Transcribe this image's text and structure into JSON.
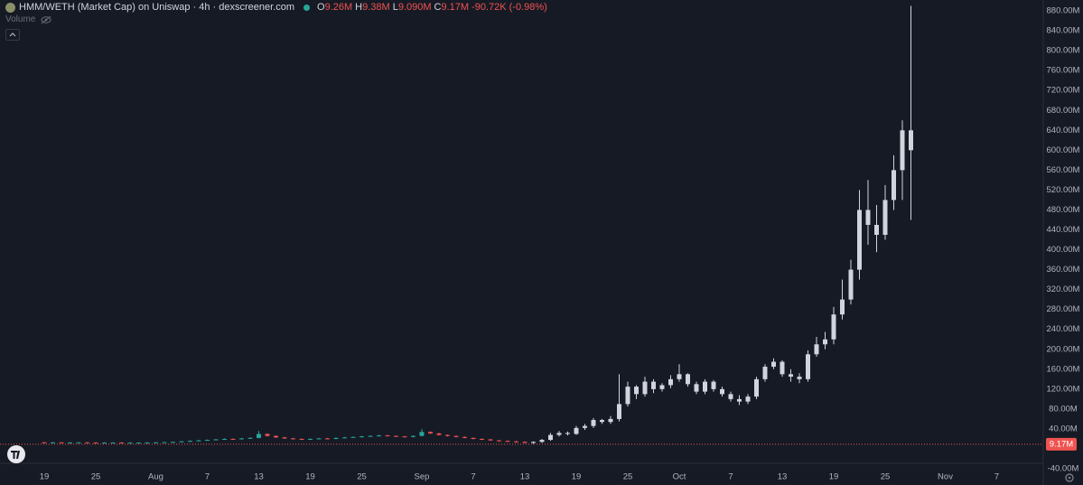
{
  "chart_data": {
    "type": "candlestick",
    "title": "HMM/WETH (Market Cap) on Uniswap · 4h · dexscreener.com",
    "ohlc_legend": [
      {
        "key": "O",
        "value": "9.26M"
      },
      {
        "key": "H",
        "value": "9.38M"
      },
      {
        "key": "L",
        "value": "9.090M"
      },
      {
        "key": "C",
        "value": "9.17M"
      }
    ],
    "change": "-90.72K (-0.98%)",
    "volume_label": "Volume",
    "last_price": {
      "value": 9.17,
      "label": "9.17M",
      "color": "#ef5350"
    },
    "categories": [
      "19",
      null,
      null,
      null,
      null,
      null,
      "25",
      null,
      null,
      null,
      null,
      null,
      null,
      "Aug",
      null,
      null,
      null,
      null,
      null,
      "7",
      null,
      null,
      null,
      null,
      null,
      "13",
      null,
      null,
      null,
      null,
      null,
      "19",
      null,
      null,
      null,
      null,
      null,
      "25",
      null,
      null,
      null,
      null,
      null,
      null,
      "Sep",
      null,
      null,
      null,
      null,
      null,
      "7",
      null,
      null,
      null,
      null,
      null,
      "13",
      null,
      null,
      null,
      null,
      null,
      "19",
      null,
      null,
      null,
      null,
      null,
      "25",
      null,
      null,
      null,
      null,
      null,
      "Oct",
      null,
      null,
      null,
      null,
      null,
      "7",
      null,
      null,
      null,
      null,
      null,
      "13",
      null,
      null,
      null,
      null,
      null,
      "19",
      null,
      null,
      null,
      null,
      null,
      "25",
      null,
      null,
      null,
      null,
      null,
      null,
      "Nov",
      null,
      null,
      null,
      null,
      null,
      "7",
      null,
      null,
      null
    ],
    "series": [
      {
        "color_up": "#26a69a",
        "color_down": "#ef5350",
        "open": [
          13.2,
          13,
          13,
          12.5,
          12.8,
          13,
          12.6,
          12.4,
          12.5,
          12.7,
          12.3,
          12.5,
          12.6,
          12.8,
          13.2,
          13.5,
          14,
          15,
          16,
          17,
          18,
          19,
          20,
          19.5,
          21,
          22,
          30,
          26,
          23,
          21,
          20,
          19,
          20,
          21,
          20,
          22,
          23,
          24,
          25,
          26,
          27,
          26,
          25,
          24,
          26,
          34,
          31,
          28,
          26,
          24,
          22,
          20,
          19,
          17,
          16,
          15,
          14,
          null,
          null,
          null,
          null,
          null,
          null,
          null,
          null,
          null,
          null,
          null,
          null,
          null,
          null,
          null,
          null,
          null,
          null,
          null,
          null,
          null,
          null,
          null,
          null,
          null,
          null,
          null,
          null,
          null,
          null,
          null,
          null,
          null,
          null,
          null,
          null,
          null,
          null,
          null,
          null,
          null,
          null,
          null,
          null,
          null,
          null,
          null,
          null,
          null,
          null,
          null,
          null,
          null,
          null,
          null,
          null,
          null,
          null
        ],
        "high": [
          14,
          13.8,
          13.6,
          13.4,
          13.7,
          13.6,
          13.3,
          13.1,
          13.3,
          13.4,
          13.2,
          13.2,
          13.4,
          13.9,
          14.1,
          14.6,
          15.8,
          16.9,
          17.9,
          18.9,
          20,
          21,
          21,
          22,
          23.5,
          36,
          31,
          27,
          24,
          22,
          21,
          21,
          22,
          22,
          23,
          24,
          25,
          26,
          27,
          28,
          28,
          27,
          26,
          27,
          40,
          35,
          32,
          29,
          27,
          25,
          23,
          21,
          20,
          18,
          17,
          16,
          15,
          null,
          null,
          null,
          null,
          null,
          null,
          null,
          null,
          null,
          null,
          null,
          null,
          null,
          null,
          null,
          null,
          null,
          null,
          null,
          null,
          null,
          null,
          null,
          null,
          null,
          null,
          null,
          null,
          null,
          null,
          null,
          null,
          null,
          null,
          null,
          null,
          null,
          null,
          null,
          null,
          null,
          null,
          null,
          null,
          null,
          null,
          null,
          null,
          null,
          null,
          null,
          null,
          null,
          null,
          null,
          null,
          null,
          null
        ],
        "low": [
          12.4,
          12.3,
          12,
          11.8,
          12.1,
          12,
          11.8,
          11.7,
          11.9,
          11.6,
          11.6,
          11.8,
          11.9,
          12.1,
          12.5,
          12.8,
          13.3,
          14.3,
          15.3,
          16.3,
          17.2,
          18.2,
          18.8,
          18.8,
          20.3,
          21,
          25,
          22,
          20,
          19.2,
          18,
          18.2,
          19.2,
          19.6,
          19.2,
          21.2,
          22.2,
          23.2,
          24.2,
          25.2,
          25.2,
          24.2,
          23.2,
          23.2,
          25,
          30,
          27,
          25,
          23,
          21,
          19,
          18,
          16,
          15,
          14,
          13,
          11,
          null,
          null,
          null,
          null,
          null,
          null,
          null,
          null,
          null,
          null,
          null,
          null,
          null,
          null,
          null,
          null,
          null,
          null,
          null,
          null,
          null,
          null,
          null,
          null,
          null,
          null,
          null,
          null,
          null,
          null,
          null,
          null,
          null,
          null,
          null,
          null,
          null,
          null,
          null,
          null,
          null,
          null,
          null,
          null,
          null,
          null,
          null,
          null,
          null,
          null,
          null,
          null,
          null,
          null,
          null,
          null,
          null,
          null
        ],
        "close": [
          13,
          13,
          12.5,
          12.8,
          13,
          12.6,
          12.4,
          12.5,
          12.7,
          12.3,
          12.5,
          12.6,
          12.8,
          13.2,
          13.5,
          14,
          15,
          16,
          17,
          18,
          19,
          20,
          19.5,
          21,
          22,
          30,
          26,
          23,
          21,
          20,
          19,
          20,
          21,
          20,
          22,
          23,
          24,
          25,
          26,
          27,
          26,
          25,
          24,
          26,
          34,
          31,
          28,
          26,
          24,
          22,
          20,
          19,
          17,
          16,
          15,
          14,
          12,
          null,
          null,
          null,
          null,
          null,
          null,
          null,
          null,
          null,
          null,
          null,
          null,
          null,
          null,
          null,
          null,
          null,
          null,
          null,
          null,
          null,
          null,
          null,
          null,
          null,
          null,
          null,
          null,
          null,
          null,
          null,
          null,
          null,
          null,
          null,
          null,
          null,
          null,
          null,
          null,
          null,
          null,
          null,
          null,
          null,
          null,
          null,
          null,
          null,
          null,
          null,
          null,
          null,
          null,
          null,
          null,
          null,
          null
        ]
      },
      {
        "color_up": "#d1d4dc",
        "color_down": "#d1d4dc",
        "open": [
          null,
          null,
          null,
          null,
          null,
          null,
          null,
          null,
          null,
          null,
          null,
          null,
          null,
          null,
          null,
          null,
          null,
          null,
          null,
          null,
          null,
          null,
          null,
          null,
          null,
          null,
          null,
          null,
          null,
          null,
          null,
          null,
          null,
          null,
          null,
          null,
          null,
          null,
          null,
          null,
          null,
          null,
          null,
          null,
          null,
          null,
          null,
          null,
          null,
          null,
          null,
          null,
          null,
          null,
          null,
          null,
          null,
          12,
          14,
          18,
          28,
          32,
          30,
          42,
          46,
          58,
          54,
          60,
          90,
          125,
          110,
          135,
          120,
          128,
          140,
          150,
          130,
          115,
          135,
          120,
          110,
          100,
          95,
          105,
          140,
          165,
          175,
          150,
          145,
          140,
          190,
          210,
          220,
          270,
          300,
          360,
          480,
          450,
          430,
          500,
          560,
          640,
          null,
          null,
          null,
          null,
          null,
          null,
          null,
          null,
          null,
          null,
          null,
          null,
          null
        ],
        "high": [
          null,
          null,
          null,
          null,
          null,
          null,
          null,
          null,
          null,
          null,
          null,
          null,
          null,
          null,
          null,
          null,
          null,
          null,
          null,
          null,
          null,
          null,
          null,
          null,
          null,
          null,
          null,
          null,
          null,
          null,
          null,
          null,
          null,
          null,
          null,
          null,
          null,
          null,
          null,
          null,
          null,
          null,
          null,
          null,
          null,
          null,
          null,
          null,
          null,
          null,
          null,
          null,
          null,
          null,
          null,
          null,
          null,
          15,
          20,
          32,
          36,
          35,
          46,
          50,
          62,
          60,
          66,
          150,
          135,
          128,
          145,
          140,
          132,
          148,
          170,
          152,
          135,
          140,
          138,
          125,
          115,
          108,
          110,
          145,
          170,
          182,
          178,
          160,
          152,
          198,
          225,
          235,
          285,
          340,
          380,
          520,
          540,
          490,
          530,
          590,
          660,
          890,
          null,
          null,
          null,
          null,
          null,
          null,
          null,
          null,
          null,
          null,
          null,
          null,
          null
        ],
        "low": [
          null,
          null,
          null,
          null,
          null,
          null,
          null,
          null,
          null,
          null,
          null,
          null,
          null,
          null,
          null,
          null,
          null,
          null,
          null,
          null,
          null,
          null,
          null,
          null,
          null,
          null,
          null,
          null,
          null,
          null,
          null,
          null,
          null,
          null,
          null,
          null,
          null,
          null,
          null,
          null,
          null,
          null,
          null,
          null,
          null,
          null,
          null,
          null,
          null,
          null,
          null,
          null,
          null,
          null,
          null,
          null,
          null,
          10,
          12,
          16,
          25,
          27,
          28,
          38,
          42,
          50,
          50,
          55,
          85,
          100,
          105,
          112,
          115,
          122,
          135,
          125,
          110,
          110,
          115,
          105,
          95,
          88,
          90,
          100,
          135,
          160,
          145,
          135,
          132,
          135,
          185,
          200,
          210,
          260,
          290,
          340,
          410,
          395,
          420,
          480,
          500,
          460,
          null,
          null,
          null,
          null,
          null,
          null,
          null,
          null,
          null,
          null,
          null,
          null,
          null
        ],
        "close": [
          null,
          null,
          null,
          null,
          null,
          null,
          null,
          null,
          null,
          null,
          null,
          null,
          null,
          null,
          null,
          null,
          null,
          null,
          null,
          null,
          null,
          null,
          null,
          null,
          null,
          null,
          null,
          null,
          null,
          null,
          null,
          null,
          null,
          null,
          null,
          null,
          null,
          null,
          null,
          null,
          null,
          null,
          null,
          null,
          null,
          null,
          null,
          null,
          null,
          null,
          null,
          null,
          null,
          null,
          null,
          null,
          null,
          14,
          18,
          28,
          32,
          30,
          42,
          46,
          58,
          54,
          60,
          90,
          125,
          110,
          135,
          120,
          128,
          140,
          150,
          130,
          115,
          135,
          120,
          110,
          100,
          95,
          105,
          140,
          165,
          175,
          150,
          145,
          140,
          190,
          210,
          220,
          270,
          300,
          360,
          480,
          450,
          430,
          500,
          560,
          640,
          600,
          null,
          null,
          null,
          null,
          null,
          null,
          null,
          null,
          null,
          null,
          null,
          null,
          null
        ]
      }
    ],
    "ylim": [
      -72.6,
      901.8
    ],
    "yticks": [
      {
        "value": -40,
        "label": "-40.00M"
      },
      {
        "value": 40,
        "label": "40.00M"
      },
      {
        "value": 80,
        "label": "80.00M"
      },
      {
        "value": 120,
        "label": "120.00M"
      },
      {
        "value": 160,
        "label": "160.00M"
      },
      {
        "value": 200,
        "label": "200.00M"
      },
      {
        "value": 240,
        "label": "240.00M"
      },
      {
        "value": 280,
        "label": "280.00M"
      },
      {
        "value": 320,
        "label": "320.00M"
      },
      {
        "value": 360,
        "label": "360.00M"
      },
      {
        "value": 400,
        "label": "400.00M"
      },
      {
        "value": 440,
        "label": "440.00M"
      },
      {
        "value": 480,
        "label": "480.00M"
      },
      {
        "value": 520,
        "label": "520.00M"
      },
      {
        "value": 560,
        "label": "560.00M"
      },
      {
        "value": 600,
        "label": "600.00M"
      },
      {
        "value": 640,
        "label": "640.00M"
      },
      {
        "value": 680,
        "label": "680.00M"
      },
      {
        "value": 720,
        "label": "720.00M"
      },
      {
        "value": 760,
        "label": "760.00M"
      },
      {
        "value": 800,
        "label": "800.00M"
      },
      {
        "value": 840,
        "label": "840.00M"
      },
      {
        "value": 880,
        "label": "880.00M"
      }
    ],
    "grid": false
  }
}
